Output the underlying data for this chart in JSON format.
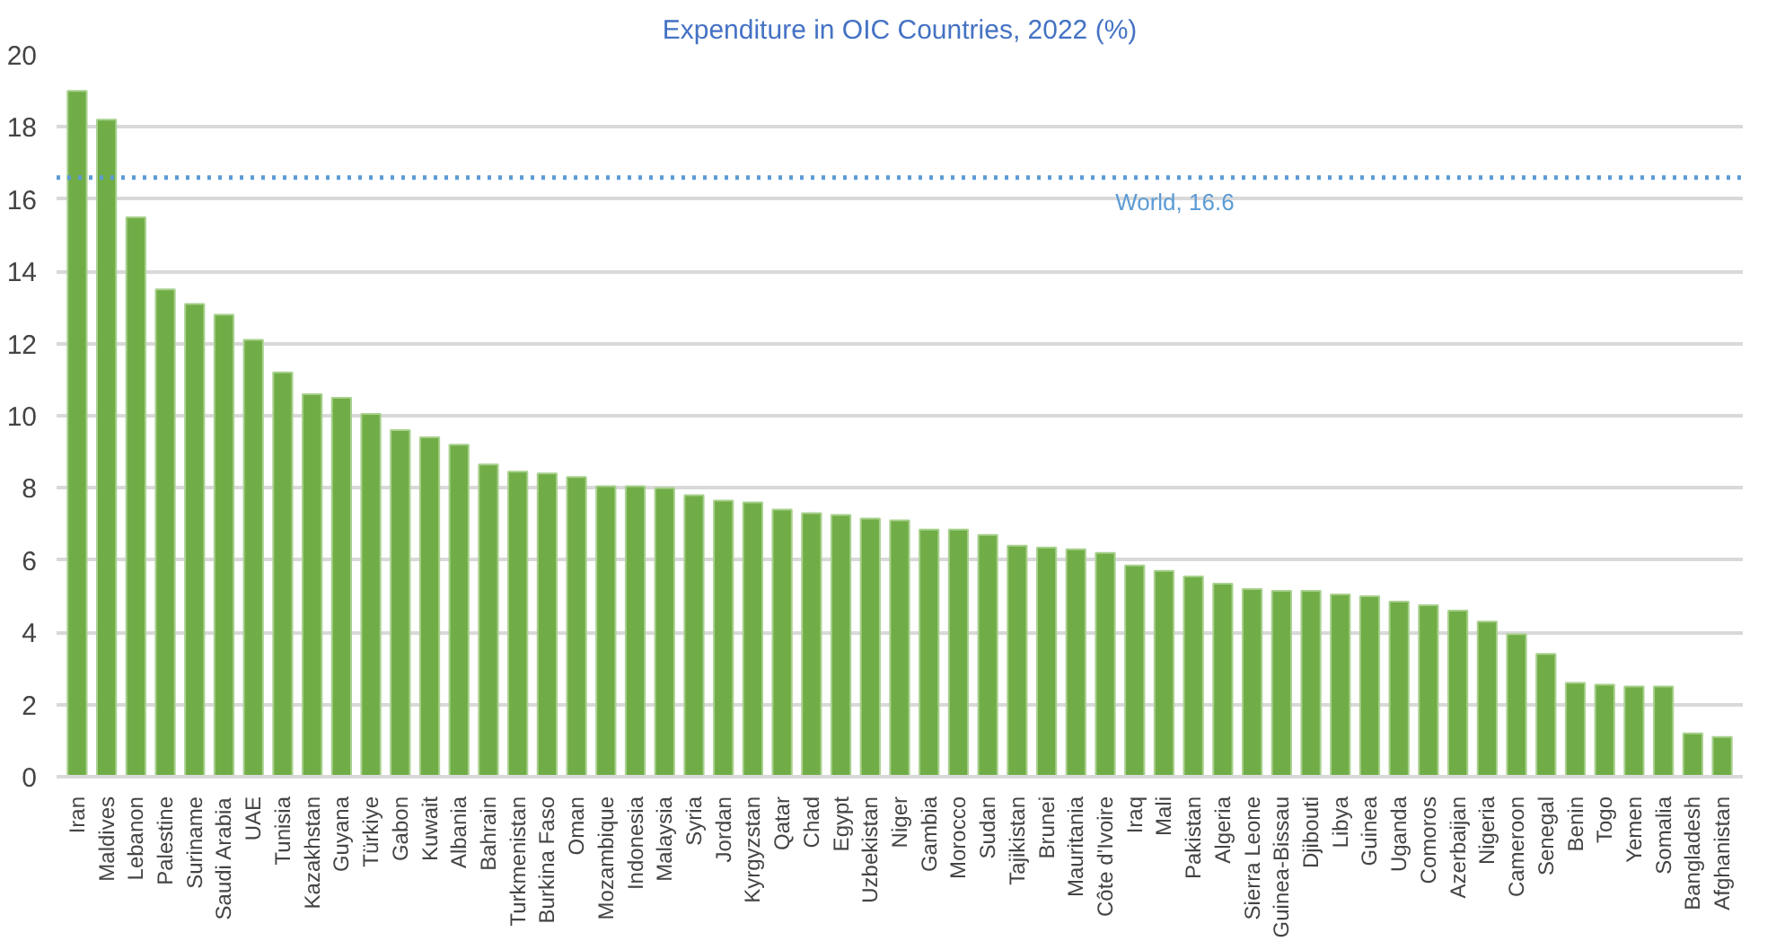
{
  "chart_data": {
    "type": "bar",
    "title": "Expenditure in OIC Countries, 2022 (%)",
    "categories": [
      "Iran",
      "Maldives",
      "Lebanon",
      "Palestine",
      "Suriname",
      "Saudi Arabia",
      "UAE",
      "Tunisia",
      "Kazakhstan",
      "Guyana",
      "Türkiye",
      "Gabon",
      "Kuwait",
      "Albania",
      "Bahrain",
      "Turkmenistan",
      "Burkina Faso",
      "Oman",
      "Mozambique",
      "Indonesia",
      "Malaysia",
      "Syria",
      "Jordan",
      "Kyrgyzstan",
      "Qatar",
      "Chad",
      "Egypt",
      "Uzbekistan",
      "Niger",
      "Gambia",
      "Morocco",
      "Sudan",
      "Tajikistan",
      "Brunei",
      "Mauritania",
      "Côte d'Ivoire",
      "Iraq",
      "Mali",
      "Pakistan",
      "Algeria",
      "Sierra Leone",
      "Guinea-Bissau",
      "Djibouti",
      "Libya",
      "Guinea",
      "Uganda",
      "Comoros",
      "Azerbaijan",
      "Nigeria",
      "Cameroon",
      "Senegal",
      "Benin",
      "Togo",
      "Yemen",
      "Somalia",
      "Bangladesh",
      "Afghanistan"
    ],
    "values": [
      19.0,
      18.2,
      15.5,
      13.5,
      13.1,
      12.8,
      12.1,
      11.2,
      10.6,
      10.5,
      10.05,
      9.6,
      9.4,
      9.2,
      8.65,
      8.45,
      8.4,
      8.3,
      8.05,
      8.05,
      8.0,
      7.8,
      7.65,
      7.6,
      7.4,
      7.3,
      7.25,
      7.15,
      7.1,
      6.85,
      6.85,
      6.7,
      6.4,
      6.35,
      6.3,
      6.2,
      5.85,
      5.7,
      5.55,
      5.35,
      5.2,
      5.15,
      5.15,
      5.05,
      5.0,
      4.85,
      4.75,
      4.6,
      4.3,
      3.95,
      3.4,
      2.6,
      2.55,
      2.5,
      2.5,
      1.2,
      1.1
    ],
    "color": "#70ad47",
    "ylim": [
      0,
      20
    ],
    "yticks": [
      0,
      2,
      4,
      6,
      8,
      10,
      12,
      14,
      16,
      18,
      20
    ],
    "grid": "y",
    "ref_lines": [
      {
        "axis": "y",
        "value": 16.6,
        "label": "World, 16.6",
        "color": "#5b9bd5",
        "line_style": "dotted"
      }
    ]
  }
}
